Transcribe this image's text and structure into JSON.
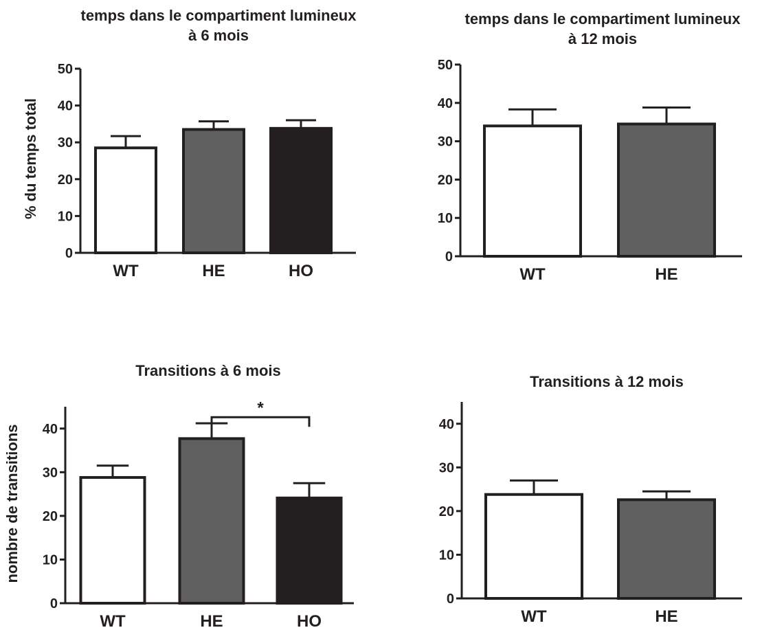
{
  "colors": {
    "ink": "#231f20",
    "WT": "#ffffff",
    "HE": "#606060",
    "HO": "#231f20"
  },
  "chart_data": [
    {
      "type": "bar",
      "title": [
        "temps dans le compartiment lumineux",
        "à 6 mois"
      ],
      "ylabel": "% du temps total",
      "categories": [
        "WT",
        "HE",
        "HO"
      ],
      "values": [
        28.5,
        33.5,
        33.8
      ],
      "errors": [
        3.2,
        2.2,
        2.2
      ],
      "ylim": [
        0,
        50
      ],
      "yticks": [
        0,
        10,
        20,
        30,
        40,
        50
      ],
      "grid": false,
      "significance": []
    },
    {
      "type": "bar",
      "title": [
        "temps dans le compartiment lumineux",
        "à 12 mois"
      ],
      "ylabel": "",
      "categories": [
        "WT",
        "HE"
      ],
      "values": [
        34.0,
        34.5
      ],
      "errors": [
        4.3,
        4.3
      ],
      "ylim": [
        0,
        50
      ],
      "yticks": [
        0,
        10,
        20,
        30,
        40,
        50
      ],
      "grid": false,
      "significance": []
    },
    {
      "type": "bar",
      "title": [
        "Transitions à 6 mois"
      ],
      "ylabel": "nombre de transitions",
      "categories": [
        "WT",
        "HE",
        "HO"
      ],
      "values": [
        28.8,
        37.7,
        24.1
      ],
      "errors": [
        2.7,
        3.5,
        3.4
      ],
      "ylim": [
        0,
        45
      ],
      "yticks": [
        0,
        10,
        20,
        30,
        40
      ],
      "grid": false,
      "significance": [
        {
          "from": "HE",
          "to": "HO",
          "y": 42.6,
          "label": "*"
        }
      ]
    },
    {
      "type": "bar",
      "title": [
        "Transitions à 12 mois"
      ],
      "ylabel": "",
      "categories": [
        "WT",
        "HE"
      ],
      "values": [
        23.8,
        22.6
      ],
      "errors": [
        3.2,
        1.9
      ],
      "ylim": [
        0,
        45
      ],
      "yticks": [
        0,
        10,
        20,
        30,
        40
      ],
      "grid": false,
      "significance": []
    }
  ]
}
